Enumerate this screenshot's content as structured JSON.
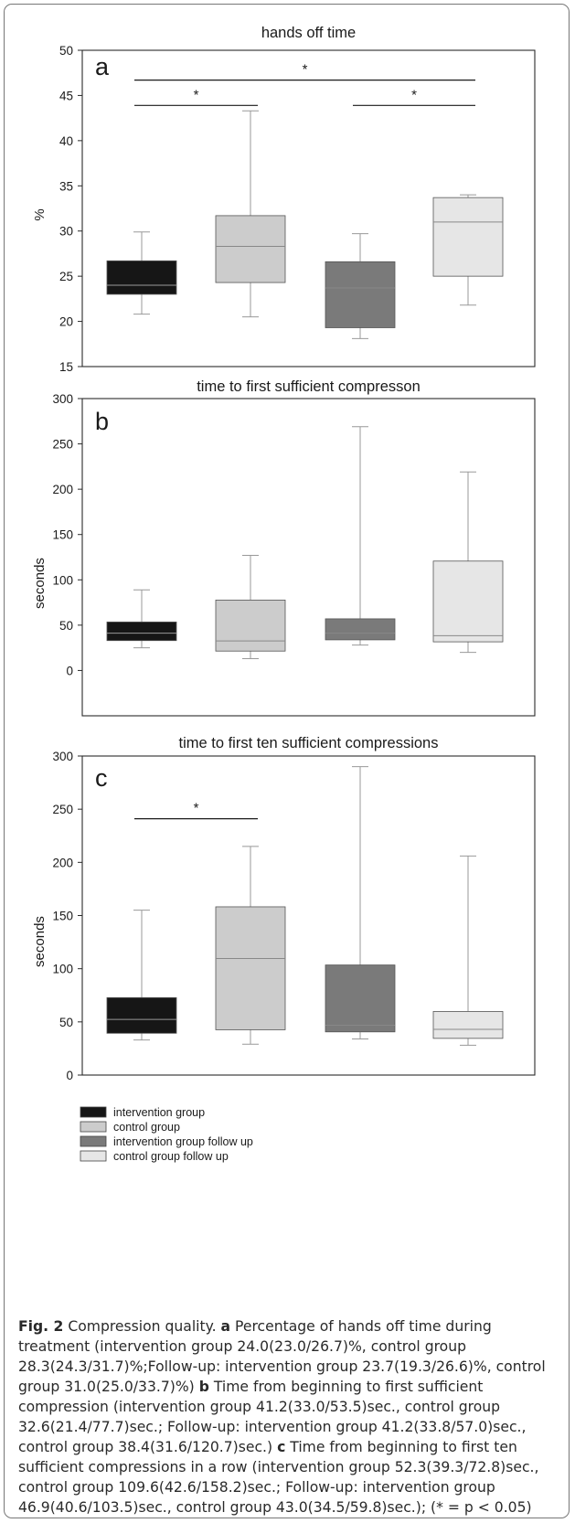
{
  "chart_data": [
    {
      "panel": "a",
      "type": "box",
      "title": "hands off time",
      "ylabel": "%",
      "ylim": [
        15,
        50
      ],
      "yticks": [
        15,
        20,
        25,
        30,
        35,
        40,
        45,
        50
      ],
      "boxes": [
        {
          "group": "intervention group",
          "min": 20.8,
          "q1": 23.0,
          "median": 24.0,
          "q3": 26.7,
          "max": 29.9
        },
        {
          "group": "control group",
          "min": 20.5,
          "q1": 24.3,
          "median": 28.3,
          "q3": 31.7,
          "max": 43.3
        },
        {
          "group": "intervention group follow up",
          "min": 18.1,
          "q1": 19.3,
          "median": 23.7,
          "q3": 26.6,
          "max": 29.7
        },
        {
          "group": "control group follow up",
          "min": 21.8,
          "q1": 25.0,
          "median": 31.0,
          "q3": 33.7,
          "max": 34.0
        }
      ],
      "significance": [
        {
          "from": 1,
          "to": 4,
          "y": 46.7,
          "label": "*"
        },
        {
          "from": 1,
          "to": 2,
          "y": 43.9,
          "label": "*"
        },
        {
          "from": 3,
          "to": 4,
          "y": 43.9,
          "label": "*"
        }
      ]
    },
    {
      "panel": "b",
      "type": "box",
      "title": "time to first sufficient compresson",
      "ylabel": "seconds",
      "ylim": [
        -50,
        300
      ],
      "yticks": [
        0,
        50,
        100,
        150,
        200,
        250,
        300
      ],
      "boxes": [
        {
          "group": "intervention group",
          "min": 25,
          "q1": 33.0,
          "median": 41.2,
          "q3": 53.5,
          "max": 89
        },
        {
          "group": "control group",
          "min": 13,
          "q1": 21.4,
          "median": 32.6,
          "q3": 77.7,
          "max": 127
        },
        {
          "group": "intervention group follow up",
          "min": 28,
          "q1": 33.8,
          "median": 41.2,
          "q3": 57.0,
          "max": 269
        },
        {
          "group": "control group follow up",
          "min": 20,
          "q1": 31.6,
          "median": 38.4,
          "q3": 120.7,
          "max": 219
        }
      ],
      "significance": []
    },
    {
      "panel": "c",
      "type": "box",
      "title": "time to first ten sufficient compressions",
      "ylabel": "seconds",
      "ylim": [
        0,
        300
      ],
      "yticks": [
        0,
        50,
        100,
        150,
        200,
        250,
        300
      ],
      "boxes": [
        {
          "group": "intervention group",
          "min": 33,
          "q1": 39.3,
          "median": 52.3,
          "q3": 72.8,
          "max": 155
        },
        {
          "group": "control group",
          "min": 29,
          "q1": 42.6,
          "median": 109.6,
          "q3": 158.2,
          "max": 215
        },
        {
          "group": "intervention group follow up",
          "min": 34,
          "q1": 40.6,
          "median": 46.9,
          "q3": 103.5,
          "max": 290
        },
        {
          "group": "control group follow up",
          "min": 28,
          "q1": 34.5,
          "median": 43.0,
          "q3": 59.8,
          "max": 206
        }
      ],
      "significance": [
        {
          "from": 1,
          "to": 2,
          "y": 241,
          "label": "*"
        }
      ]
    }
  ],
  "legend": [
    {
      "label": "intervention group",
      "color": "#161616"
    },
    {
      "label": "control group",
      "color": "#cccccc"
    },
    {
      "label": "intervention group follow up",
      "color": "#7a7a7a"
    },
    {
      "label": "control group follow up",
      "color": "#e6e6e6"
    }
  ],
  "caption": {
    "fig_label": "Fig. 2",
    "title": "Compression quality.",
    "a_letter": "a",
    "a_text": "Percentage of hands off time during treatment (intervention group 24.0(23.0/26.7)%, control group 28.3(24.3/31.7)%;Follow-up: intervention group 23.7(19.3/26.6)%, control group 31.0(25.0/33.7)%)",
    "b_letter": "b",
    "b_text": "Time from beginning to first sufficient compression (intervention group 41.2(33.0/53.5)sec., control group 32.6(21.4/77.7)sec.; Follow-up: intervention group 41.2(33.8/57.0)sec., control group 38.4(31.6/120.7)sec.)",
    "c_letter": "c",
    "c_text": "Time from beginning to first ten sufficient compressions in a row (intervention group 52.3(39.3/72.8)sec., control group 109.6(42.6/158.2)sec.; Follow-up: intervention group 46.9(40.6/103.5)sec., control group 43.0(34.5/59.8)sec.); (* = p < 0.05)"
  },
  "colors": {
    "whisker": "#999999",
    "box_outline": "#555555",
    "median_on_dark": "#9a9a9a",
    "median_on_light": "#888888"
  }
}
